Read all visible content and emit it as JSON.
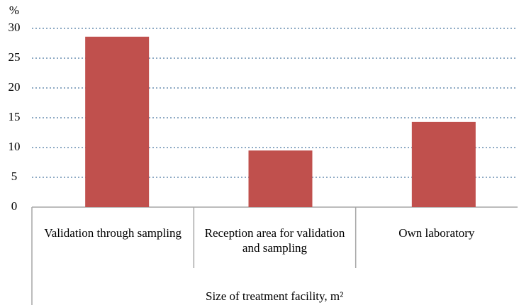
{
  "chart_data": {
    "type": "bar",
    "y_label": "%",
    "x_label": "Size of treatment facility, m²",
    "categories": [
      "Validation through sampling",
      "Reception area for validation and sampling",
      "Own laboratory"
    ],
    "values": [
      28.6,
      9.5,
      14.3
    ],
    "color": "#c0504d",
    "ylim": [
      0,
      30
    ],
    "yticks": [
      0,
      5,
      10,
      15,
      20,
      25,
      30
    ],
    "grid": true
  }
}
